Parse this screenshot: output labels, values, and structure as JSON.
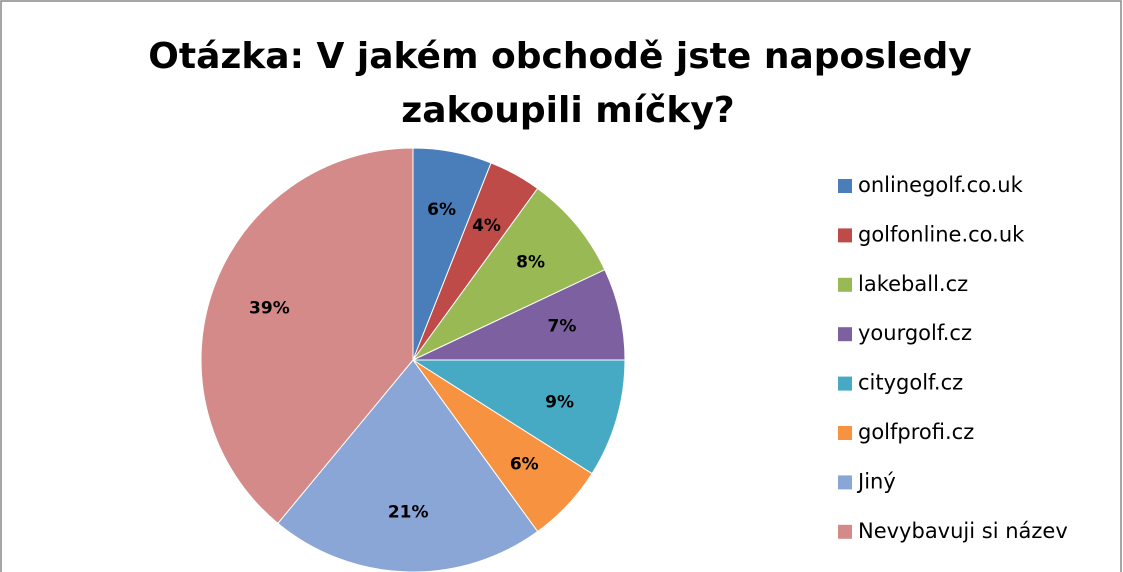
{
  "chart_data": {
    "type": "pie",
    "title": [
      "Otázka: V jakém obchodě jste naposledy",
      "zakoupili míčky?"
    ],
    "categories": [
      "onlinegolf.co.uk",
      "golfonline.co.uk",
      "lakeball.cz",
      "yourgolf.cz",
      "citygolf.cz",
      "golfprofi.cz",
      "Jiný",
      "Nevybavuji si název"
    ],
    "values": [
      6,
      4,
      8,
      7,
      9,
      6,
      21,
      39
    ],
    "value_labels": [
      "6%",
      "4%",
      "8%",
      "7%",
      "9%",
      "6%",
      "21%",
      "39%"
    ],
    "colors": [
      "#4a7ebb",
      "#be4b48",
      "#98b954",
      "#7d60a0",
      "#46aac5",
      "#f69240",
      "#8aa6d6",
      "#d48a88"
    ],
    "legend": "right"
  }
}
